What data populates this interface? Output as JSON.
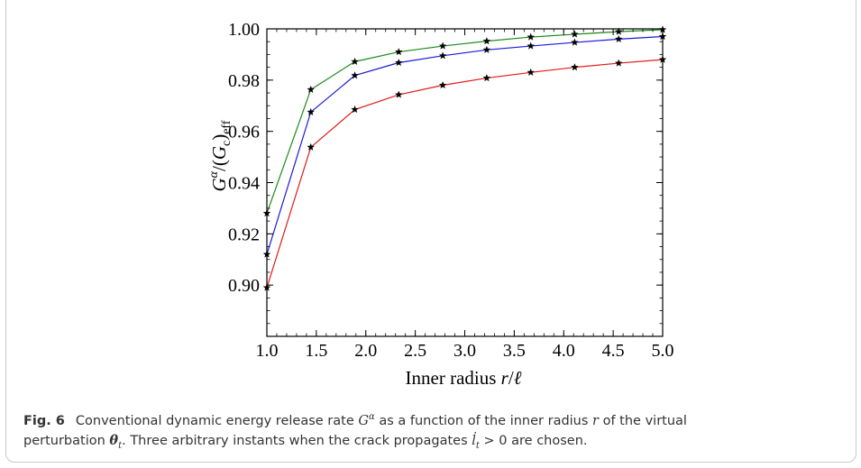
{
  "chart_data": {
    "type": "line",
    "xlabel": "Inner radius r/ℓ",
    "ylabel": "G^α/(G_c)_eff",
    "xlim": [
      1.0,
      5.0
    ],
    "ylim": [
      0.88,
      1.0
    ],
    "x_ticks": [
      "1.0",
      "1.5",
      "2.0",
      "2.5",
      "3.0",
      "3.5",
      "4.0",
      "4.5",
      "5.0"
    ],
    "y_ticks": [
      "0.90",
      "0.92",
      "0.94",
      "0.96",
      "0.98",
      "1.00"
    ],
    "x": [
      1.0,
      1.444,
      1.889,
      2.333,
      2.778,
      3.222,
      3.667,
      4.111,
      4.556,
      5.0
    ],
    "marker": "star",
    "series": [
      {
        "color": "#1a8a1a",
        "values": [
          0.928,
          0.9763,
          0.9872,
          0.991,
          0.9933,
          0.9952,
          0.9968,
          0.9979,
          0.9989,
          0.9997
        ]
      },
      {
        "color": "#1a1ad6",
        "values": [
          0.912,
          0.9675,
          0.9818,
          0.9868,
          0.9895,
          0.9918,
          0.9933,
          0.9947,
          0.996,
          0.997
        ]
      },
      {
        "color": "#e01a1a",
        "values": [
          0.899,
          0.9538,
          0.9685,
          0.9743,
          0.978,
          0.9808,
          0.983,
          0.985,
          0.9866,
          0.988
        ]
      }
    ]
  },
  "caption": {
    "fig_label": "Fig. 6",
    "text_1": "Conventional dynamic energy release rate ",
    "G": "G",
    "alpha": "α",
    "text_2": " as a function of the inner radius ",
    "r": "r",
    "text_3": " of the virtual",
    "text_4": "perturbation ",
    "theta": "θ",
    "t1": "t",
    "text_5": ". Three arbitrary instants when the crack propagates ",
    "l_dot": "l̇",
    "t2": "t",
    "text_6": " > 0 are chosen."
  }
}
